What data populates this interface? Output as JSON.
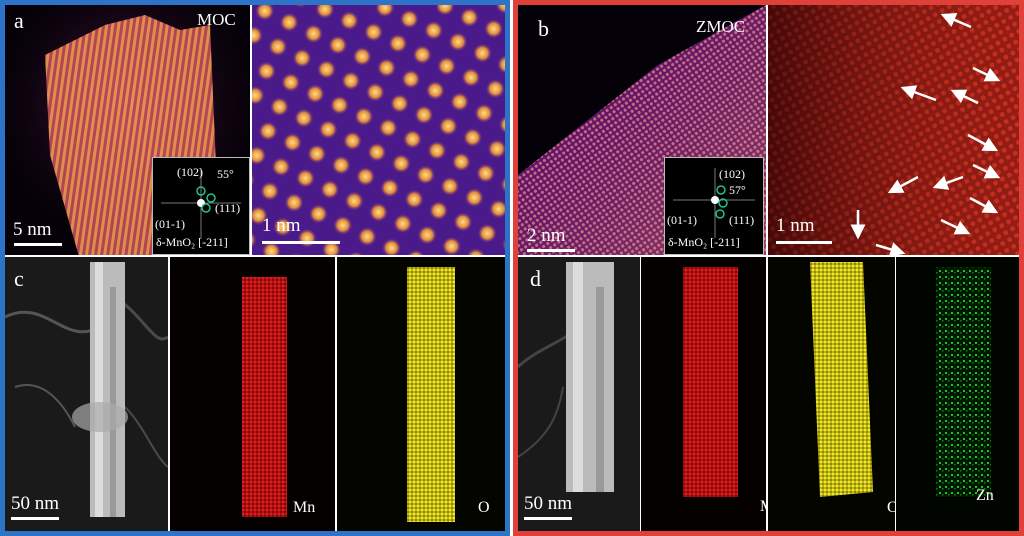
{
  "panel_a": {
    "letter": "a",
    "tag": "MOC",
    "scale_left": "5 nm",
    "scale_right": "1 nm",
    "fft": {
      "top": "(102)",
      "angle": "55°",
      "right": "(111)",
      "left": "(01-1)",
      "zone": "δ-MnO₂ [-211]"
    }
  },
  "panel_b": {
    "letter": "b",
    "tag": "ZMOC",
    "scale_left": "2 nm",
    "scale_right": "1 nm",
    "fft": {
      "top": "(102)",
      "angle": "57°",
      "right": "(111)",
      "left": "(01-1)",
      "zone": "δ-MnO₂ [-211]"
    }
  },
  "panel_c": {
    "letter": "c",
    "scale": "50 nm",
    "elements": [
      "Mn",
      "O"
    ]
  },
  "panel_d": {
    "letter": "d",
    "scale": "50 nm",
    "elements": [
      "Mn",
      "O",
      "Zn"
    ]
  },
  "colors": {
    "blue_frame": "#2d74c9",
    "red_frame": "#e0403a",
    "mn": "#e01010",
    "o": "#d8d010",
    "zn": "#10b020"
  }
}
